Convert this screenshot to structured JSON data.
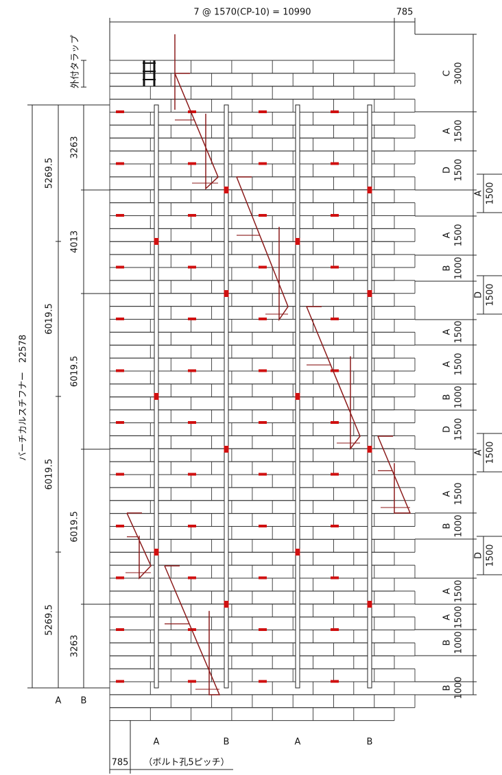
{
  "top_dimension": {
    "span": "7 @ 1570(CP-10) = 10990",
    "edge": "785"
  },
  "left": {
    "ladder_label": "外付タラップ",
    "stiffener_label": "バーチカルスチフナー　22578",
    "outer_dims": [
      "5269.5",
      "6019.5",
      "6019.5",
      "5269.5"
    ],
    "inner_dims": [
      "3263",
      "4013",
      "6019.5",
      "6019.5",
      "3263"
    ],
    "column_labels": [
      "A",
      "B"
    ]
  },
  "right_dims": [
    {
      "type": "C",
      "length": "3000"
    },
    {
      "type": "A",
      "length": "1500"
    },
    {
      "type": "D",
      "length": "1500"
    },
    {
      "type": "A",
      "length": "1500"
    },
    {
      "type": "A",
      "length": "1500"
    },
    {
      "type": "B",
      "length": "1000"
    },
    {
      "type": "D",
      "length": "1500"
    },
    {
      "type": "A",
      "length": "1500"
    },
    {
      "type": "A",
      "length": "1500"
    },
    {
      "type": "B",
      "length": "1000"
    },
    {
      "type": "D",
      "length": "1500"
    },
    {
      "type": "A",
      "length": "1500"
    },
    {
      "type": "A",
      "length": "1500"
    },
    {
      "type": "B",
      "length": "1000"
    },
    {
      "type": "D",
      "length": "1500"
    },
    {
      "type": "A",
      "length": "1500"
    },
    {
      "type": "A",
      "length": "1500"
    },
    {
      "type": "B",
      "length": "1000"
    },
    {
      "type": "B",
      "length": "1000"
    }
  ],
  "post_labels": [
    "A",
    "B",
    "A",
    "B"
  ],
  "bottom_dimension": {
    "value": "785",
    "note": "（ボルト孔5ピッチ）"
  }
}
